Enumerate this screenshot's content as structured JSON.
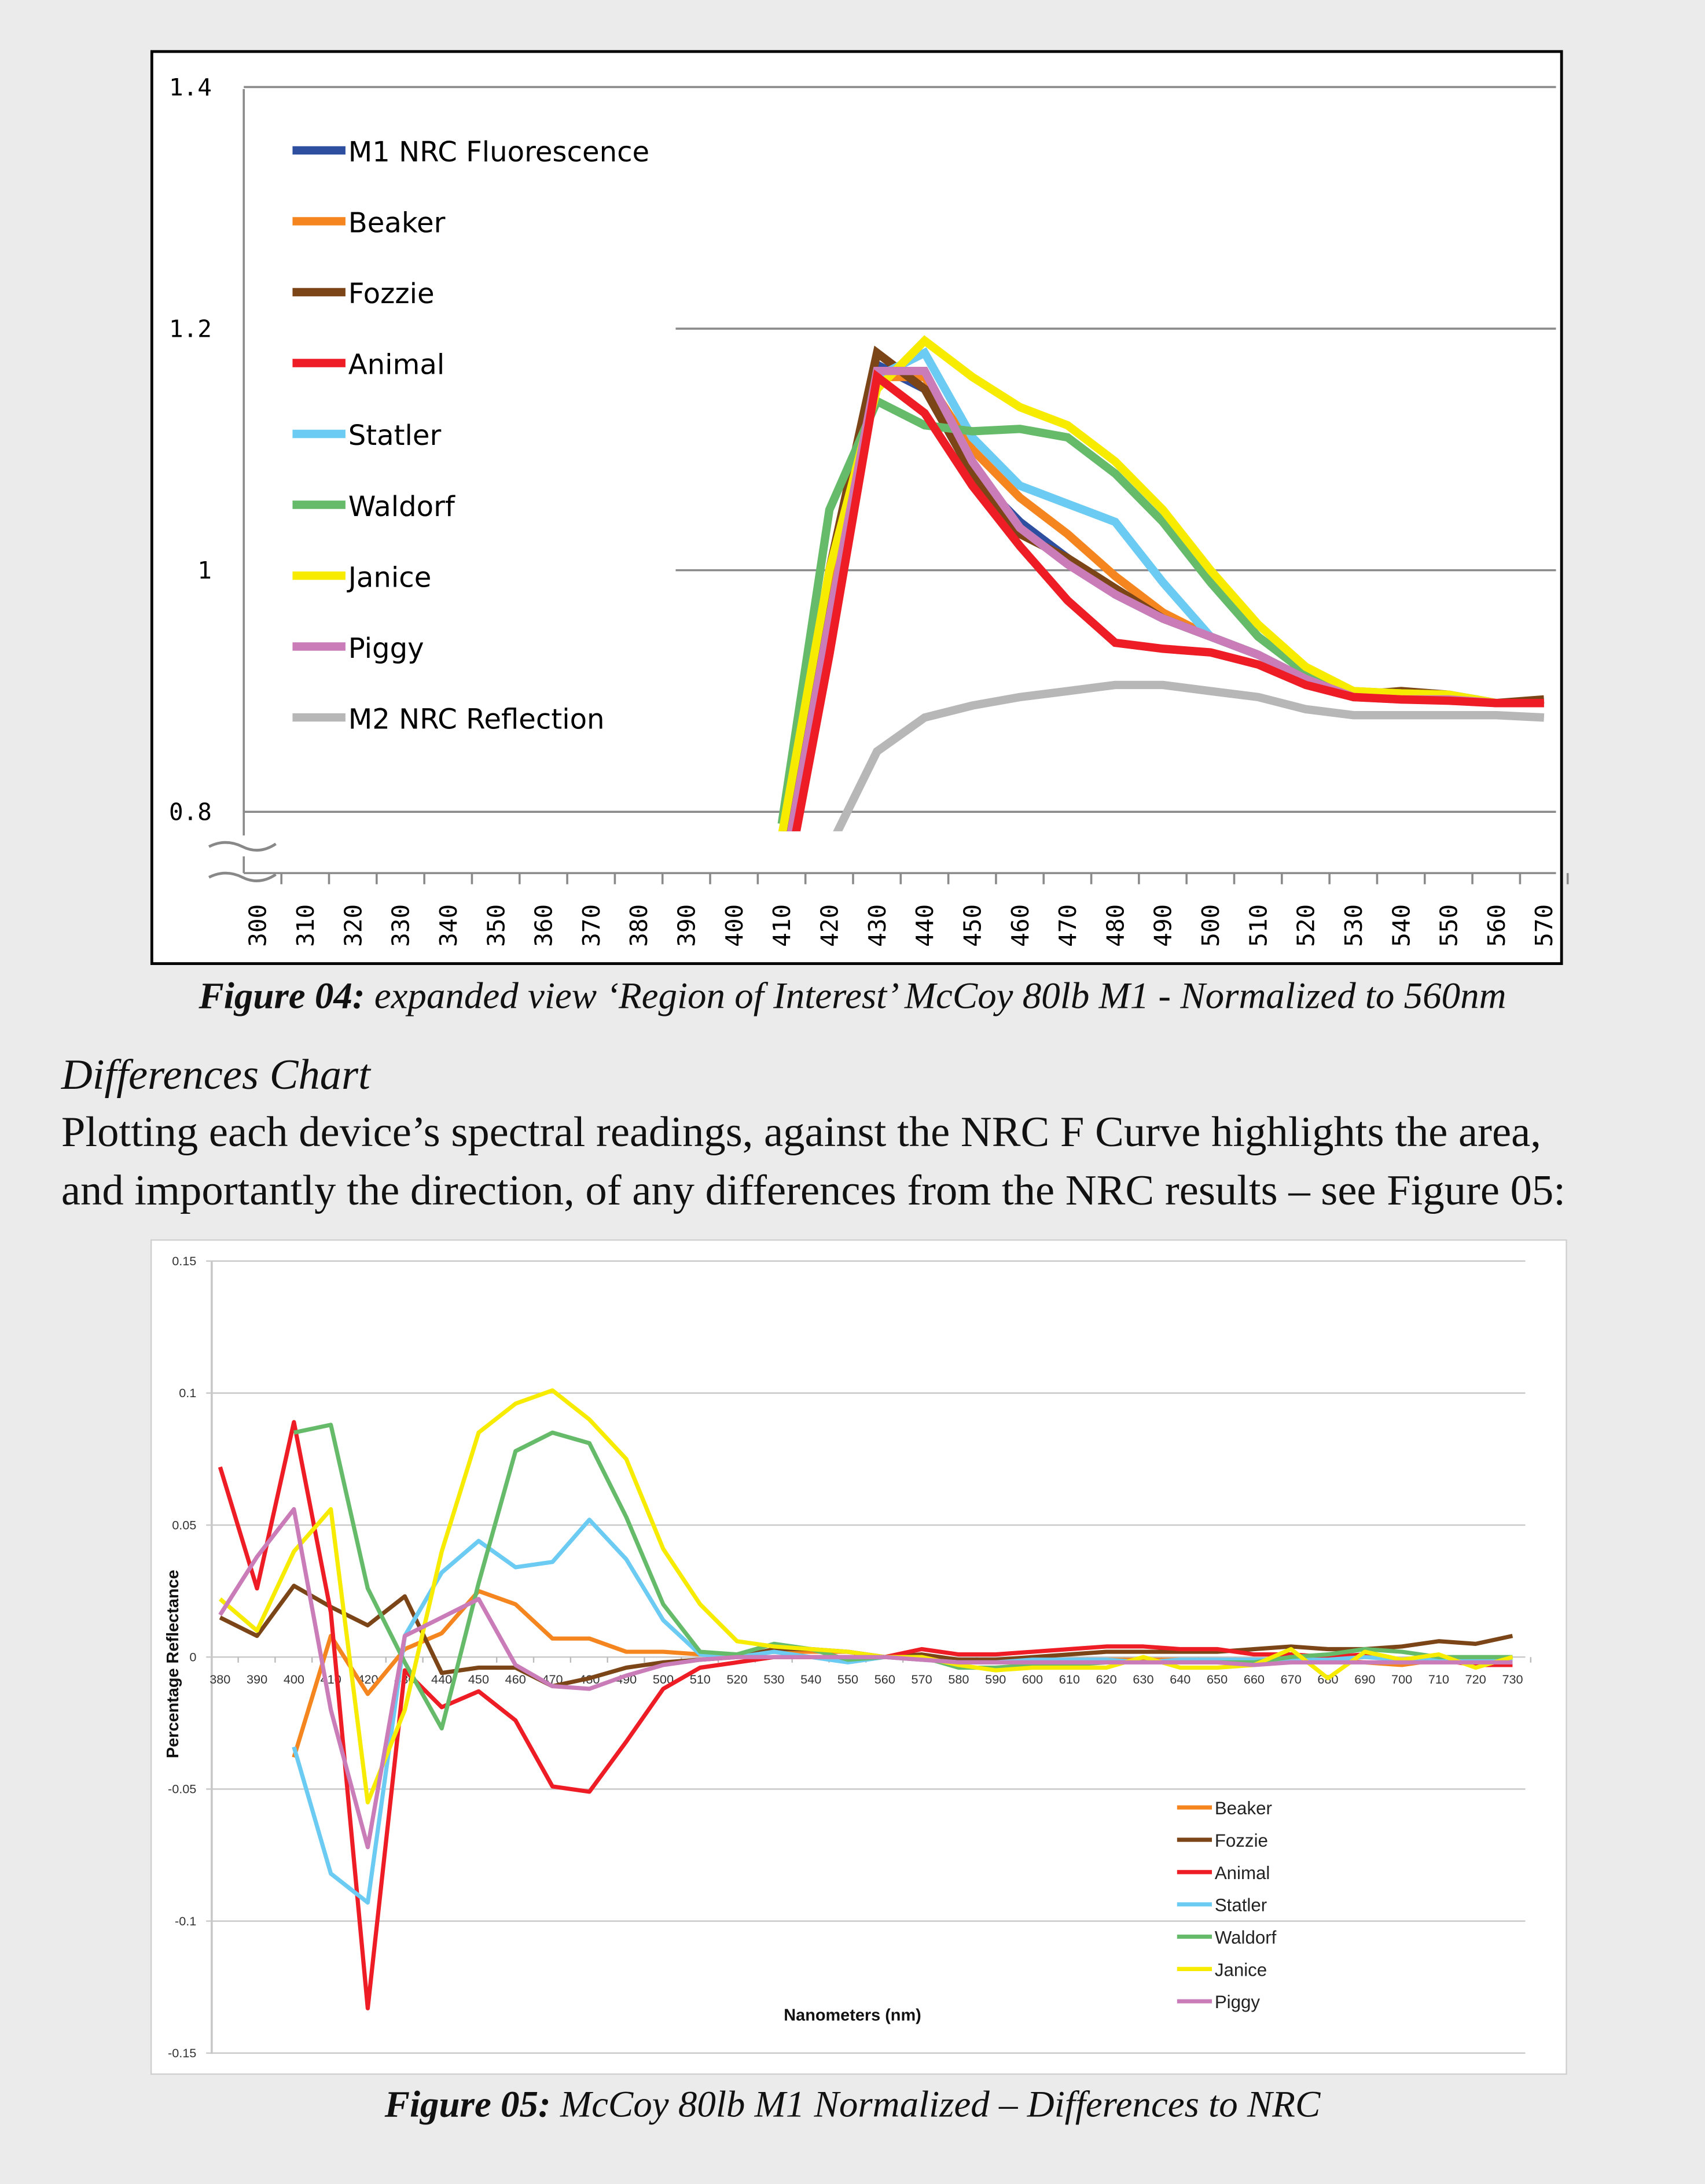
{
  "figure04_caption": {
    "label": "Figure 04:",
    "text": " expanded view ‘Region of Interest’ McCoy 80lb M1 - Normalized to 560nm"
  },
  "section_heading": "Differences Chart",
  "paragraph_lines": [
    "Plotting each device’s spectral readings, against the NRC F Curve highlights the area,",
    "and importantly the direction, of any differences from the NRC results – see Figure 05:"
  ],
  "figure05_caption": {
    "label": "Figure 05:",
    "text": " McCoy 80lb M1 Normalized – Differences to NRC"
  },
  "chart_data": [
    {
      "type": "line",
      "title": "",
      "xlabel": "",
      "ylabel": "",
      "ylim": [
        0.8,
        1.4
      ],
      "y_axis_break": true,
      "yticks": [
        "1.4",
        "1.2",
        "1",
        "0.8"
      ],
      "grid": true,
      "legend": "top-left",
      "xticks": [
        "300",
        "310",
        "320",
        "330",
        "340",
        "350",
        "360",
        "370",
        "380",
        "390",
        "400",
        "410",
        "420",
        "430",
        "440",
        "450",
        "460",
        "470",
        "480",
        "490",
        "500",
        "510",
        "520",
        "530",
        "540",
        "550",
        "560",
        "570"
      ],
      "x": [
        410,
        420,
        430,
        440,
        450,
        460,
        470,
        480,
        490,
        500,
        510,
        520,
        530,
        540,
        550,
        560,
        570
      ],
      "series": [
        {
          "name": "M1 NRC Fluorescence",
          "color": "#2e4fa0",
          "values": [
            0.76,
            0.98,
            1.17,
            1.15,
            1.08,
            1.04,
            1.01,
            0.98,
            0.96,
            0.945,
            0.93,
            0.91,
            0.895,
            0.895,
            0.895,
            0.89,
            0.89
          ]
        },
        {
          "name": "Beaker",
          "color": "#f5861f",
          "values": [
            0.75,
            0.97,
            1.16,
            1.16,
            1.1,
            1.06,
            1.03,
            0.995,
            0.965,
            0.945,
            0.93,
            0.91,
            0.897,
            0.897,
            0.895,
            0.89,
            0.89
          ]
        },
        {
          "name": "Fozzie",
          "color": "#7b4518",
          "values": [
            0.77,
            1.0,
            1.18,
            1.15,
            1.08,
            1.03,
            1.01,
            0.985,
            0.96,
            0.945,
            0.93,
            0.91,
            0.897,
            0.9,
            0.897,
            0.89,
            0.893
          ]
        },
        {
          "name": "Animal",
          "color": "#ee1c25",
          "values": [
            0.72,
            0.93,
            1.16,
            1.13,
            1.07,
            1.02,
            0.975,
            0.94,
            0.935,
            0.932,
            0.922,
            0.905,
            0.895,
            0.893,
            0.892,
            0.89,
            0.89
          ]
        },
        {
          "name": "Statler",
          "color": "#6ccbf2",
          "values": [
            0.73,
            0.95,
            1.16,
            1.18,
            1.11,
            1.07,
            1.055,
            1.04,
            0.99,
            0.945,
            0.93,
            0.91,
            0.897,
            0.895,
            0.893,
            0.89,
            0.89
          ]
        },
        {
          "name": "Waldorf",
          "color": "#66bb6a",
          "values": [
            0.79,
            1.05,
            1.14,
            1.12,
            1.115,
            1.117,
            1.11,
            1.08,
            1.04,
            0.99,
            0.945,
            0.915,
            0.9,
            0.898,
            0.897,
            0.89,
            0.89
          ]
        },
        {
          "name": "Janice",
          "color": "#f7ec00",
          "values": [
            0.78,
            1.0,
            1.15,
            1.19,
            1.16,
            1.135,
            1.12,
            1.09,
            1.05,
            1.0,
            0.955,
            0.92,
            0.9,
            0.898,
            0.897,
            0.89,
            0.89
          ]
        },
        {
          "name": "Piggy",
          "color": "#c97cb8",
          "values": [
            0.74,
            0.96,
            1.165,
            1.165,
            1.09,
            1.035,
            1.005,
            0.98,
            0.96,
            0.945,
            0.93,
            0.91,
            0.895,
            0.893,
            0.893,
            0.89,
            0.89
          ]
        },
        {
          "name": "M2 NRC Reflection",
          "color": "#b7b7b7",
          "values": [
            null,
            0.77,
            0.85,
            0.878,
            0.888,
            0.895,
            0.9,
            0.905,
            0.905,
            0.9,
            0.895,
            0.885,
            0.88,
            0.88,
            0.88,
            0.88,
            0.878
          ]
        }
      ]
    },
    {
      "type": "line",
      "title": "",
      "xlabel": "Nanometers (nm)",
      "ylabel": "Percentage Reflectance",
      "ylim": [
        -0.15,
        0.15
      ],
      "yticks": [
        "0.15",
        "0.1",
        "0.05",
        "0",
        "-0.05",
        "-0.1",
        "-0.15"
      ],
      "grid": true,
      "legend": "bottom-right",
      "x": [
        380,
        390,
        400,
        410,
        420,
        430,
        440,
        450,
        460,
        470,
        480,
        490,
        500,
        510,
        520,
        530,
        540,
        550,
        560,
        570,
        580,
        590,
        600,
        610,
        620,
        630,
        640,
        650,
        660,
        670,
        680,
        690,
        700,
        710,
        720,
        730
      ],
      "series": [
        {
          "name": "Beaker",
          "color": "#f5861f",
          "values": [
            null,
            null,
            -0.038,
            0.008,
            -0.014,
            0.003,
            0.009,
            0.025,
            0.02,
            0.007,
            0.007,
            0.002,
            0.002,
            0.001,
            0.001,
            0.002,
            0.002,
            0.002,
            0,
            -0.001,
            -0.001,
            -0.002,
            -0.002,
            -0.001,
            -0.001,
            -0.001,
            -0.001,
            -0.001,
            -0.001,
            -0.001,
            -0.001,
            -0.002,
            -0.003,
            -0.001,
            -0.001,
            -0.001
          ]
        },
        {
          "name": "Fozzie",
          "color": "#7b4518",
          "values": [
            0.015,
            0.008,
            0.027,
            0.019,
            0.012,
            0.023,
            -0.006,
            -0.004,
            -0.004,
            -0.011,
            -0.008,
            -0.004,
            -0.002,
            -0.001,
            0,
            0.003,
            0.003,
            0.002,
            0,
            0.001,
            -0.001,
            -0.001,
            0,
            0.001,
            0.002,
            0.002,
            0.002,
            0.002,
            0.003,
            0.004,
            0.003,
            0.003,
            0.004,
            0.006,
            0.005,
            0.008
          ]
        },
        {
          "name": "Animal",
          "color": "#ee1c25",
          "values": [
            0.072,
            0.026,
            0.089,
            0.017,
            -0.133,
            -0.005,
            -0.019,
            -0.013,
            -0.024,
            -0.049,
            -0.051,
            -0.032,
            -0.012,
            -0.004,
            -0.002,
            0,
            0,
            0,
            0,
            0.003,
            0.001,
            0.001,
            0.002,
            0.003,
            0.004,
            0.004,
            0.003,
            0.003,
            0.001,
            0.001,
            0,
            0.001,
            -0.001,
            -0.001,
            -0.003,
            -0.003
          ]
        },
        {
          "name": "Statler",
          "color": "#6ccbf2",
          "values": [
            null,
            null,
            -0.034,
            -0.082,
            -0.093,
            0.008,
            0.032,
            0.044,
            0.034,
            0.036,
            0.052,
            0.037,
            0.014,
            0.001,
            0,
            0.002,
            0,
            -0.002,
            0,
            -0.001,
            -0.002,
            -0.002,
            -0.001,
            -0.001,
            -0.001,
            -0.002,
            -0.001,
            -0.001,
            -0.001,
            -0.001,
            -0.001,
            0,
            -0.001,
            -0.001,
            -0.001,
            -0.001
          ]
        },
        {
          "name": "Waldorf",
          "color": "#66bb6a",
          "values": [
            null,
            null,
            0.085,
            0.088,
            0.026,
            -0.002,
            -0.027,
            0.028,
            0.078,
            0.085,
            0.081,
            0.053,
            0.02,
            0.002,
            0.001,
            0.005,
            0.003,
            -0.001,
            0,
            0,
            -0.004,
            -0.004,
            -0.003,
            -0.003,
            -0.002,
            -0.002,
            -0.002,
            -0.002,
            -0.002,
            0,
            0.001,
            0.003,
            0.002,
            0,
            0,
            0
          ]
        },
        {
          "name": "Janice",
          "color": "#f7ec00",
          "values": [
            0.022,
            0.01,
            0.04,
            0.056,
            -0.055,
            -0.02,
            0.04,
            0.085,
            0.096,
            0.101,
            0.09,
            0.075,
            0.041,
            0.02,
            0.006,
            0.004,
            0.003,
            0.002,
            0,
            0,
            -0.003,
            -0.005,
            -0.004,
            -0.004,
            -0.004,
            0,
            -0.004,
            -0.004,
            -0.003,
            0.003,
            -0.008,
            0.002,
            -0.001,
            0.001,
            -0.004,
            0
          ]
        },
        {
          "name": "Piggy",
          "color": "#c97cb8",
          "values": [
            0.016,
            0.038,
            0.056,
            -0.02,
            -0.072,
            0.008,
            0.015,
            0.022,
            -0.003,
            -0.011,
            -0.012,
            -0.007,
            -0.003,
            -0.001,
            0,
            0,
            0,
            0,
            0,
            -0.001,
            -0.002,
            -0.002,
            -0.002,
            -0.002,
            -0.002,
            -0.002,
            -0.002,
            -0.002,
            -0.003,
            -0.002,
            -0.002,
            -0.002,
            -0.002,
            -0.002,
            -0.002,
            -0.002
          ]
        }
      ]
    }
  ]
}
